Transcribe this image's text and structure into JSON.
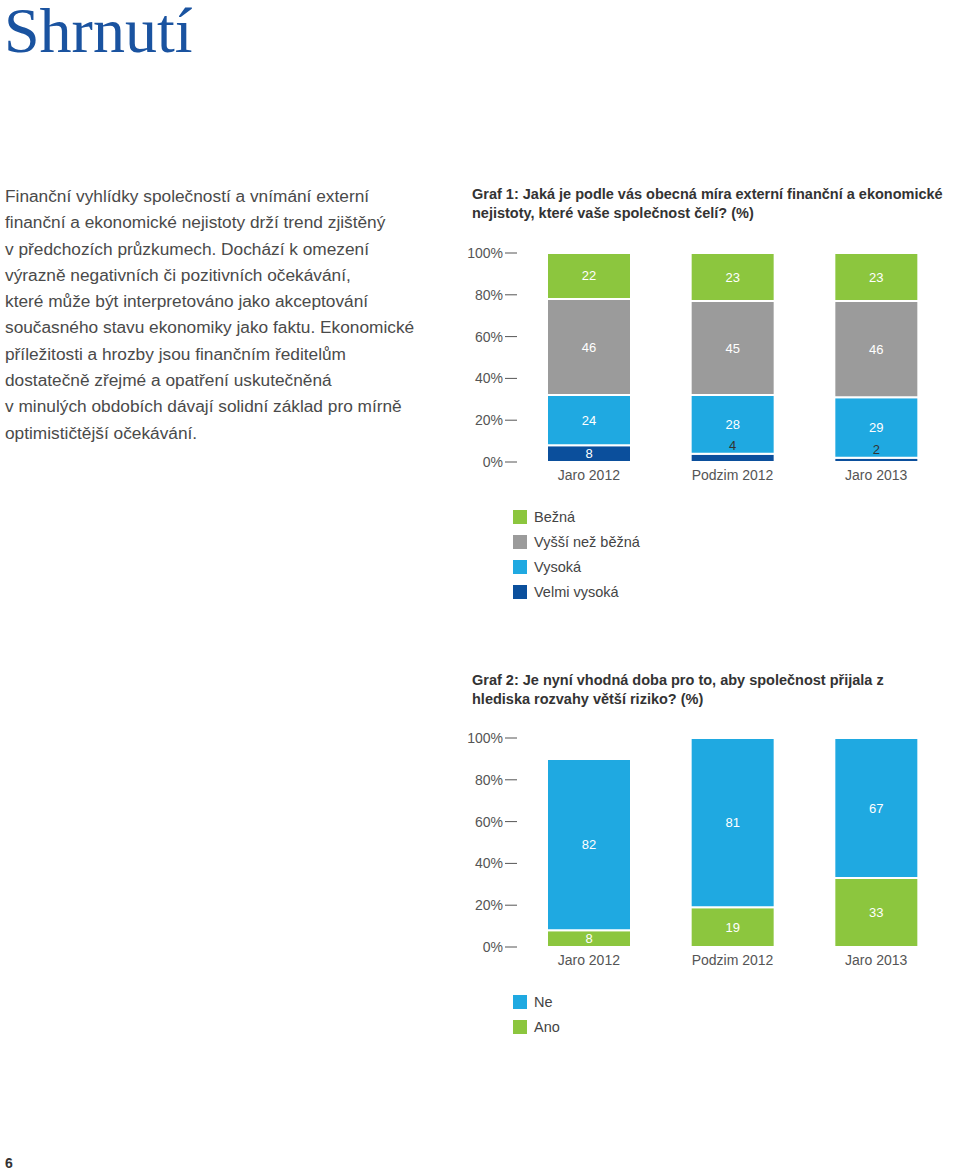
{
  "heading": "Shrnutí",
  "paragraph_lines": [
    "Finanční vyhlídky společností a vnímání externí",
    "finanční a ekonomické nejistoty drží trend zjištěný",
    "v předchozích průzkumech. Dochází k omezení",
    "výrazně negativních či pozitivních očekávání,",
    "které může být interpretováno jako akceptování",
    "současného stavu ekonomiky jako faktu. Ekonomické",
    "příležitosti a hrozby jsou finančním ředitelům",
    "dostatečně zřejmé a opatření uskutečněná",
    "v minulých obdobích dávají solidní základ pro mírně",
    "optimističtější očekávání."
  ],
  "page_number": "6",
  "chart_data": [
    {
      "type": "bar",
      "stacked": true,
      "data_labels": true,
      "title": "Graf 1: Jaká je podle vás obecná míra externí finanční a ekonomické nejistoty, které vaše společnost čelí? (%)",
      "categories": [
        "Jaro 2012",
        "Podzim 2012",
        "Jaro 2013"
      ],
      "series": [
        {
          "name": "Bežná",
          "color": "#8cc63e",
          "values": [
            22,
            23,
            23
          ]
        },
        {
          "name": "Vyšší než běžná",
          "color": "#9b9b9b",
          "values": [
            46,
            45,
            46
          ]
        },
        {
          "name": "Vysoká",
          "color": "#1fa9e1",
          "values": [
            24,
            28,
            29
          ]
        },
        {
          "name": "Velmi vysoká",
          "color": "#0b4f9c",
          "values": [
            8,
            4,
            2
          ]
        }
      ],
      "ylim": [
        0,
        100
      ],
      "yticks": [
        {
          "value": 0,
          "label": "0%"
        },
        {
          "value": 20,
          "label": "20%"
        },
        {
          "value": 40,
          "label": "40%"
        },
        {
          "value": 60,
          "label": "60%"
        },
        {
          "value": 80,
          "label": "80%"
        },
        {
          "value": 100,
          "label": "100%"
        }
      ]
    },
    {
      "type": "bar",
      "stacked": true,
      "data_labels": true,
      "title": "Graf 2: Je nyní vhodná doba pro to, aby společnost přijala z hlediska rozvahy větší riziko? (%)",
      "categories": [
        "Jaro 2012",
        "Podzim 2012",
        "Jaro 2013"
      ],
      "series": [
        {
          "name": "Ne",
          "color": "#1fa9e1",
          "values": [
            82,
            81,
            67
          ]
        },
        {
          "name": "Ano",
          "color": "#8cc63e",
          "values": [
            8,
            19,
            33
          ]
        }
      ],
      "ylim": [
        0,
        100
      ],
      "yticks": [
        {
          "value": 0,
          "label": "0%"
        },
        {
          "value": 20,
          "label": "20%"
        },
        {
          "value": 40,
          "label": "40%"
        },
        {
          "value": 60,
          "label": "60%"
        },
        {
          "value": 80,
          "label": "80%"
        },
        {
          "value": 100,
          "label": "100%"
        }
      ]
    }
  ]
}
